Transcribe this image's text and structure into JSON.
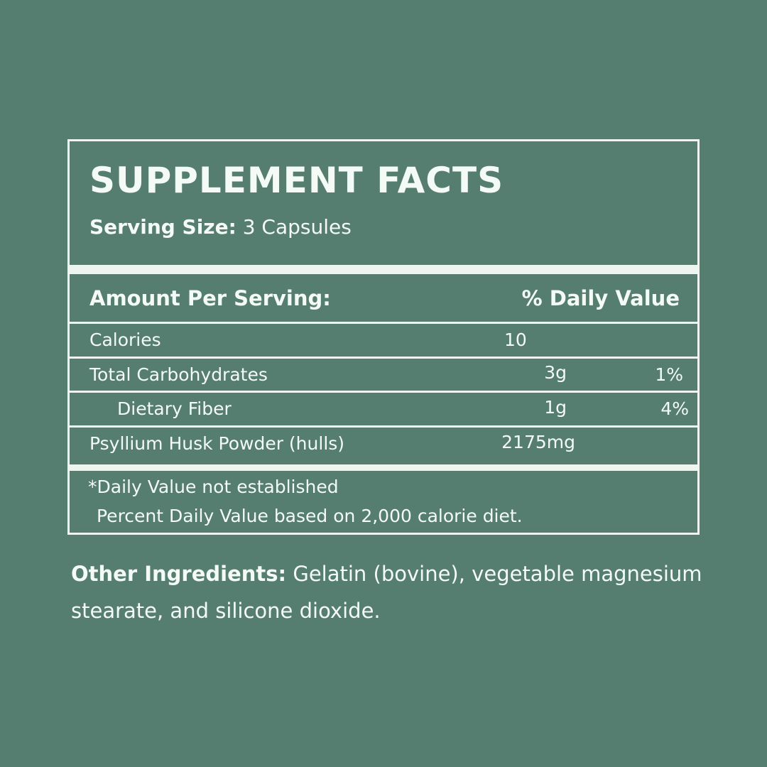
{
  "panel": {
    "title": "SUPPLEMENT FACTS",
    "serving_label": "Serving Size:",
    "serving_value": "3 Capsules",
    "header_amount": "Amount Per Serving:",
    "header_dv": "% Daily Value",
    "rows": [
      {
        "name": "Calories",
        "amount": "10",
        "dv": ""
      },
      {
        "name": "Total Carbohydrates",
        "amount": "3g",
        "dv": "1%"
      },
      {
        "name": "Dietary Fiber",
        "amount": "1g",
        "dv": "4%"
      },
      {
        "name": "Psyllium Husk Powder (hulls)",
        "amount": "2175mg",
        "dv": ""
      }
    ],
    "footnote_1": "*Daily Value not established",
    "footnote_2": "Percent Daily Value based on 2,000 calorie diet."
  },
  "other": {
    "label": "Other Ingredients:",
    "text": "Gelatin (bovine), vegetable magnesium stearate, and silicone dioxide."
  }
}
